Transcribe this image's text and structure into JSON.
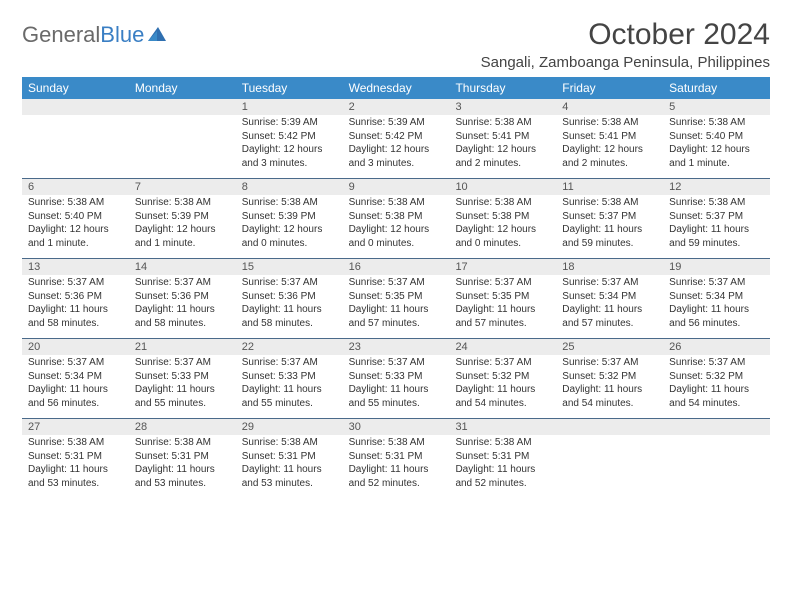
{
  "logo": {
    "part1": "General",
    "part2": "Blue"
  },
  "title": "October 2024",
  "location": "Sangali, Zamboanga Peninsula, Philippines",
  "colors": {
    "header_bg": "#3a8ac8",
    "header_fg": "#ffffff",
    "daynum_bg": "#ececec",
    "week_divider": "#4a6a8a",
    "text": "#333333"
  },
  "dow": [
    "Sunday",
    "Monday",
    "Tuesday",
    "Wednesday",
    "Thursday",
    "Friday",
    "Saturday"
  ],
  "weeks": [
    [
      {
        "n": "",
        "t": ""
      },
      {
        "n": "",
        "t": ""
      },
      {
        "n": "1",
        "t": "Sunrise: 5:39 AM\nSunset: 5:42 PM\nDaylight: 12 hours and 3 minutes."
      },
      {
        "n": "2",
        "t": "Sunrise: 5:39 AM\nSunset: 5:42 PM\nDaylight: 12 hours and 3 minutes."
      },
      {
        "n": "3",
        "t": "Sunrise: 5:38 AM\nSunset: 5:41 PM\nDaylight: 12 hours and 2 minutes."
      },
      {
        "n": "4",
        "t": "Sunrise: 5:38 AM\nSunset: 5:41 PM\nDaylight: 12 hours and 2 minutes."
      },
      {
        "n": "5",
        "t": "Sunrise: 5:38 AM\nSunset: 5:40 PM\nDaylight: 12 hours and 1 minute."
      }
    ],
    [
      {
        "n": "6",
        "t": "Sunrise: 5:38 AM\nSunset: 5:40 PM\nDaylight: 12 hours and 1 minute."
      },
      {
        "n": "7",
        "t": "Sunrise: 5:38 AM\nSunset: 5:39 PM\nDaylight: 12 hours and 1 minute."
      },
      {
        "n": "8",
        "t": "Sunrise: 5:38 AM\nSunset: 5:39 PM\nDaylight: 12 hours and 0 minutes."
      },
      {
        "n": "9",
        "t": "Sunrise: 5:38 AM\nSunset: 5:38 PM\nDaylight: 12 hours and 0 minutes."
      },
      {
        "n": "10",
        "t": "Sunrise: 5:38 AM\nSunset: 5:38 PM\nDaylight: 12 hours and 0 minutes."
      },
      {
        "n": "11",
        "t": "Sunrise: 5:38 AM\nSunset: 5:37 PM\nDaylight: 11 hours and 59 minutes."
      },
      {
        "n": "12",
        "t": "Sunrise: 5:38 AM\nSunset: 5:37 PM\nDaylight: 11 hours and 59 minutes."
      }
    ],
    [
      {
        "n": "13",
        "t": "Sunrise: 5:37 AM\nSunset: 5:36 PM\nDaylight: 11 hours and 58 minutes."
      },
      {
        "n": "14",
        "t": "Sunrise: 5:37 AM\nSunset: 5:36 PM\nDaylight: 11 hours and 58 minutes."
      },
      {
        "n": "15",
        "t": "Sunrise: 5:37 AM\nSunset: 5:36 PM\nDaylight: 11 hours and 58 minutes."
      },
      {
        "n": "16",
        "t": "Sunrise: 5:37 AM\nSunset: 5:35 PM\nDaylight: 11 hours and 57 minutes."
      },
      {
        "n": "17",
        "t": "Sunrise: 5:37 AM\nSunset: 5:35 PM\nDaylight: 11 hours and 57 minutes."
      },
      {
        "n": "18",
        "t": "Sunrise: 5:37 AM\nSunset: 5:34 PM\nDaylight: 11 hours and 57 minutes."
      },
      {
        "n": "19",
        "t": "Sunrise: 5:37 AM\nSunset: 5:34 PM\nDaylight: 11 hours and 56 minutes."
      }
    ],
    [
      {
        "n": "20",
        "t": "Sunrise: 5:37 AM\nSunset: 5:34 PM\nDaylight: 11 hours and 56 minutes."
      },
      {
        "n": "21",
        "t": "Sunrise: 5:37 AM\nSunset: 5:33 PM\nDaylight: 11 hours and 55 minutes."
      },
      {
        "n": "22",
        "t": "Sunrise: 5:37 AM\nSunset: 5:33 PM\nDaylight: 11 hours and 55 minutes."
      },
      {
        "n": "23",
        "t": "Sunrise: 5:37 AM\nSunset: 5:33 PM\nDaylight: 11 hours and 55 minutes."
      },
      {
        "n": "24",
        "t": "Sunrise: 5:37 AM\nSunset: 5:32 PM\nDaylight: 11 hours and 54 minutes."
      },
      {
        "n": "25",
        "t": "Sunrise: 5:37 AM\nSunset: 5:32 PM\nDaylight: 11 hours and 54 minutes."
      },
      {
        "n": "26",
        "t": "Sunrise: 5:37 AM\nSunset: 5:32 PM\nDaylight: 11 hours and 54 minutes."
      }
    ],
    [
      {
        "n": "27",
        "t": "Sunrise: 5:38 AM\nSunset: 5:31 PM\nDaylight: 11 hours and 53 minutes."
      },
      {
        "n": "28",
        "t": "Sunrise: 5:38 AM\nSunset: 5:31 PM\nDaylight: 11 hours and 53 minutes."
      },
      {
        "n": "29",
        "t": "Sunrise: 5:38 AM\nSunset: 5:31 PM\nDaylight: 11 hours and 53 minutes."
      },
      {
        "n": "30",
        "t": "Sunrise: 5:38 AM\nSunset: 5:31 PM\nDaylight: 11 hours and 52 minutes."
      },
      {
        "n": "31",
        "t": "Sunrise: 5:38 AM\nSunset: 5:31 PM\nDaylight: 11 hours and 52 minutes."
      },
      {
        "n": "",
        "t": ""
      },
      {
        "n": "",
        "t": ""
      }
    ]
  ]
}
